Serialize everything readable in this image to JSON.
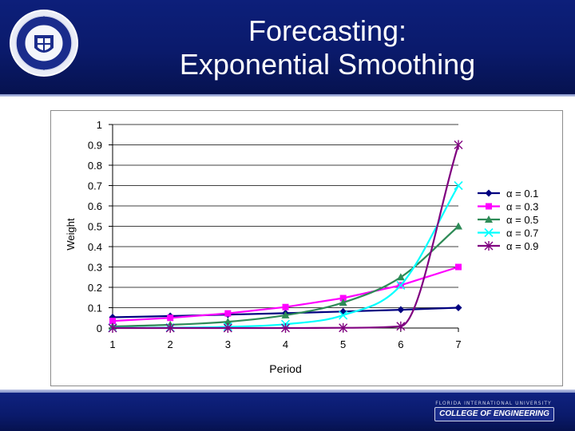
{
  "header": {
    "title_line1": "Forecasting:",
    "title_line2": "Exponential Smoothing",
    "seal_icon": "university-seal-icon",
    "background_color": "#0a1a6b"
  },
  "footer": {
    "logo_icon": "college-logo-icon",
    "logo_small_text": "FLORIDA INTERNATIONAL UNIVERSITY",
    "logo_text": "COLLEGE OF ENGINEERING"
  },
  "chart_data": {
    "type": "line",
    "title": "",
    "xlabel": "Period",
    "ylabel": "Weight",
    "x": [
      1,
      2,
      3,
      4,
      5,
      6,
      7
    ],
    "xlim": [
      1,
      7
    ],
    "ylim": [
      0,
      1
    ],
    "y_ticks": [
      "0",
      "0.1",
      "0.2",
      "0.3",
      "0.4",
      "0.5",
      "0.6",
      "0.7",
      "0.8",
      "0.9",
      "1"
    ],
    "x_ticks": [
      "1",
      "2",
      "3",
      "4",
      "5",
      "6",
      "7"
    ],
    "grid": "horizontal",
    "legend_position": "right",
    "series": [
      {
        "name": "α = 0.1",
        "color": "#000080",
        "marker": "diamond",
        "smooth": false,
        "values": [
          0.053,
          0.059,
          0.066,
          0.073,
          0.081,
          0.09,
          0.1
        ]
      },
      {
        "name": "α = 0.3",
        "color": "#ff00ff",
        "marker": "square",
        "smooth": false,
        "values": [
          0.035,
          0.05,
          0.072,
          0.103,
          0.147,
          0.21,
          0.3
        ]
      },
      {
        "name": "α = 0.5",
        "color": "#2e8b57",
        "marker": "triangle",
        "smooth": true,
        "values": [
          0.008,
          0.016,
          0.031,
          0.063,
          0.125,
          0.25,
          0.5
        ]
      },
      {
        "name": "α = 0.7",
        "color": "#00ffff",
        "marker": "x",
        "smooth": true,
        "values": [
          0.001,
          0.002,
          0.006,
          0.019,
          0.063,
          0.21,
          0.7
        ]
      },
      {
        "name": "α = 0.9",
        "color": "#800080",
        "marker": "star",
        "smooth": true,
        "values": [
          0.0,
          0.0,
          0.0,
          0.0,
          0.001,
          0.009,
          0.9
        ]
      }
    ]
  }
}
